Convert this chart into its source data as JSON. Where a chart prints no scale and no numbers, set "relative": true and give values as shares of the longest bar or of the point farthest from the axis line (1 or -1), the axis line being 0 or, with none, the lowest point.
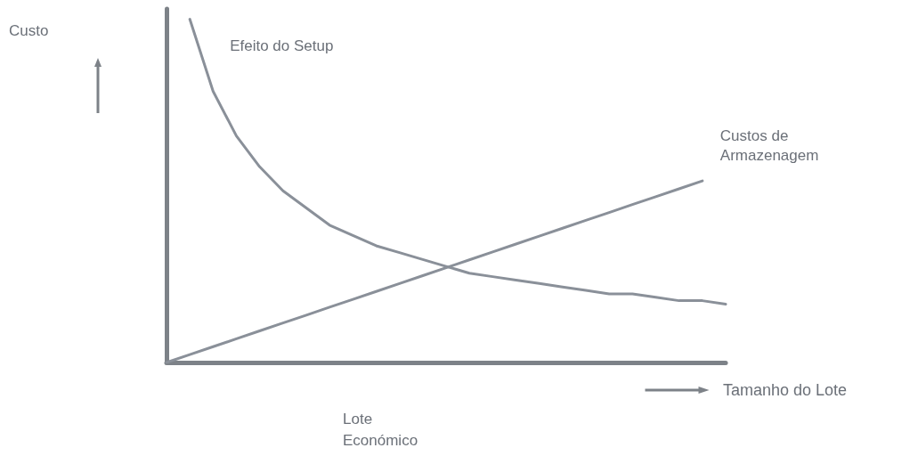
{
  "chart_data": {
    "type": "line",
    "relative": true,
    "xlabel": "Tamanho do Lote",
    "annotations": [
      "Custo",
      "Lote Económico"
    ],
    "categories": [
      null,
      null,
      null,
      null,
      null,
      null,
      null,
      null,
      null,
      null,
      null,
      null,
      null,
      null,
      null,
      null,
      null,
      null,
      null,
      null,
      null,
      null,
      null,
      null,
      null
    ],
    "series": [
      {
        "name": "Efeito do Setup",
        "color": "#8a9099",
        "values": [
          null,
          1.0,
          0.79,
          0.66,
          0.57,
          0.5,
          0.45,
          0.4,
          0.37,
          0.34,
          0.32,
          0.3,
          0.28,
          0.26,
          0.25,
          0.24,
          0.23,
          0.22,
          0.21,
          0.2,
          0.2,
          0.19,
          0.18,
          0.18,
          0.17
        ]
      },
      {
        "name": "Custos de Armazenagem",
        "color": "#8a9099",
        "values": [
          0,
          0.023,
          0.046,
          0.069,
          0.092,
          0.115,
          0.138,
          0.161,
          0.184,
          0.207,
          0.23,
          0.253,
          0.276,
          0.299,
          0.322,
          0.345,
          0.368,
          0.391,
          0.414,
          0.437,
          0.46,
          0.483,
          0.506,
          0.529,
          null
        ]
      }
    ],
    "legend": false,
    "grid": false,
    "marker": "none",
    "line_style": "solid"
  }
}
